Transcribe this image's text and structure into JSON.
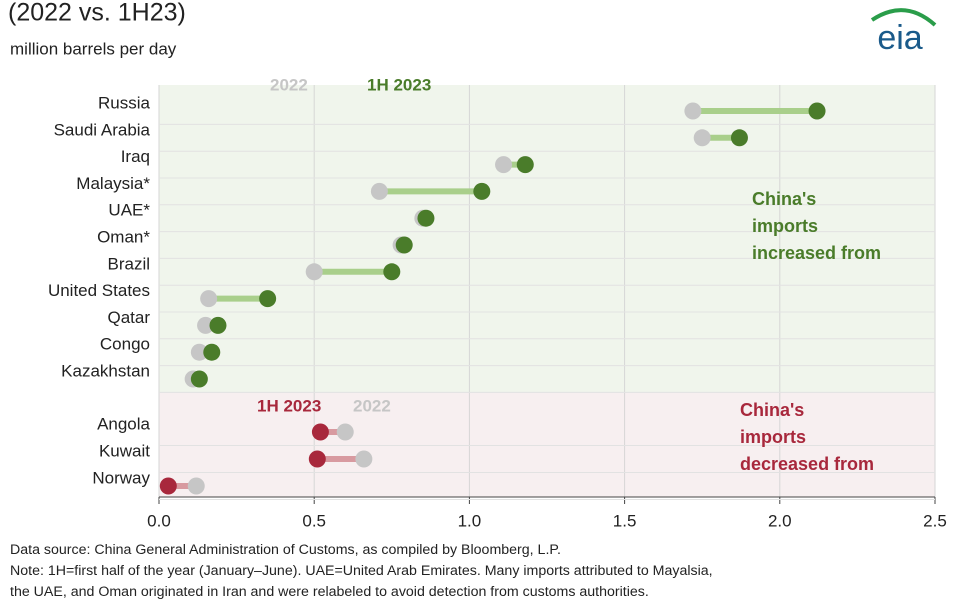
{
  "chart_data": {
    "type": "dumbbell",
    "title": "(2022 vs. 1H23)",
    "subtitle": "million barrels per day",
    "logo": "eia",
    "xlim": [
      0,
      2.5
    ],
    "xticks": [
      {
        "value": 0,
        "label": "0.0"
      },
      0.5,
      {
        "value": 1,
        "label": "1.0"
      },
      1.5,
      {
        "value": 2,
        "label": "2.0"
      },
      2.5
    ],
    "panels": [
      {
        "categories": [
          "Russia",
          "Saudi Arabia",
          "Iraq",
          "Malaysia*",
          "UAE*",
          "Oman*",
          "Brazil",
          "United States",
          "Qatar",
          "Congo",
          "Kazakhstan"
        ],
        "background": "#f0f5ec",
        "line_color": "#a9cf8b",
        "series": [
          {
            "name": "2022",
            "color": "#c6c6c6",
            "values": [
              1.72,
              1.75,
              1.11,
              0.71,
              0.85,
              0.78,
              0.5,
              0.16,
              0.15,
              0.13,
              0.11
            ]
          },
          {
            "name": "1H 2023",
            "color": "#4a7c2a",
            "values": [
              2.12,
              1.87,
              1.18,
              1.04,
              0.86,
              0.79,
              0.75,
              0.35,
              0.19,
              0.17,
              0.13
            ]
          }
        ],
        "legend_order": [
          0,
          1
        ],
        "annotation": [
          "China's",
          "imports",
          "increased from"
        ]
      },
      {
        "categories": [
          "Angola",
          "Kuwait",
          "Norway"
        ],
        "background": "#f7eff0",
        "line_color": "#d89aa0",
        "series": [
          {
            "name": "2022",
            "color": "#c6c6c6",
            "values": [
              0.6,
              0.66,
              0.12
            ]
          },
          {
            "name": "1H 2023",
            "color": "#a8283c",
            "values": [
              0.52,
              0.51,
              0.03
            ]
          }
        ],
        "legend_order": [
          1,
          0
        ],
        "annotation": [
          "China's",
          "imports",
          "decreased from"
        ]
      }
    ],
    "notes": [
      "Data source: China General Administration of Customs, as compiled by Bloomberg, L.P.",
      "Note: 1H=first half of the year (January–June). UAE=United Arab Emirates. Many imports attributed to Mayalsia,",
      "the UAE, and Oman originated in Iran and were relabeled to avoid detection from customs authorities."
    ]
  }
}
